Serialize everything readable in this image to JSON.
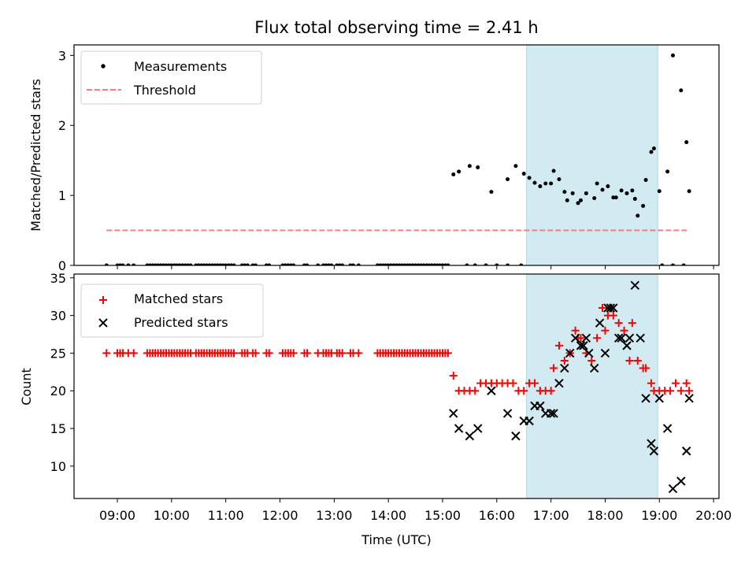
{
  "chart_data": {
    "title": "Flux total observing time = 2.41 h",
    "x_axis": {
      "label": "Time (UTC)",
      "range_hours": [
        8.2,
        20.1
      ],
      "ticks": [
        9,
        10,
        11,
        12,
        13,
        14,
        15,
        16,
        17,
        18,
        19,
        20
      ],
      "tick_labels": [
        "09:00",
        "10:00",
        "11:00",
        "12:00",
        "13:00",
        "14:00",
        "15:00",
        "16:00",
        "17:00",
        "18:00",
        "19:00",
        "20:00"
      ]
    },
    "shaded_region_hours": [
      16.55,
      18.97
    ],
    "colors": {
      "shade": "#add8e6",
      "threshold": "#f08080",
      "matched": "#ff0000",
      "predicted": "#000000",
      "measurement": "#000000"
    },
    "top": {
      "type": "scatter",
      "ylabel": "Matched/Predicted stars",
      "ylim": [
        0,
        3.15
      ],
      "yticks": [
        0,
        1,
        2,
        3
      ],
      "legend": {
        "position": "top-left",
        "entries": [
          "Measurements",
          "Threshold"
        ]
      },
      "threshold": {
        "value": 0.5,
        "x_range": [
          8.8,
          19.55
        ]
      },
      "measurements": [
        [
          8.8,
          0
        ],
        [
          9.0,
          0
        ],
        [
          9.05,
          0
        ],
        [
          9.1,
          0
        ],
        [
          9.2,
          0
        ],
        [
          9.3,
          0
        ],
        [
          9.55,
          0
        ],
        [
          9.6,
          0
        ],
        [
          9.65,
          0
        ],
        [
          9.7,
          0
        ],
        [
          9.75,
          0
        ],
        [
          9.8,
          0
        ],
        [
          9.85,
          0
        ],
        [
          9.9,
          0
        ],
        [
          9.95,
          0
        ],
        [
          10.0,
          0
        ],
        [
          10.05,
          0
        ],
        [
          10.1,
          0
        ],
        [
          10.15,
          0
        ],
        [
          10.2,
          0
        ],
        [
          10.25,
          0
        ],
        [
          10.3,
          0
        ],
        [
          10.35,
          0
        ],
        [
          10.45,
          0
        ],
        [
          10.5,
          0
        ],
        [
          10.55,
          0
        ],
        [
          10.6,
          0
        ],
        [
          10.65,
          0
        ],
        [
          10.7,
          0
        ],
        [
          10.75,
          0
        ],
        [
          10.8,
          0
        ],
        [
          10.85,
          0
        ],
        [
          10.9,
          0
        ],
        [
          10.95,
          0
        ],
        [
          11.0,
          0
        ],
        [
          11.05,
          0
        ],
        [
          11.1,
          0
        ],
        [
          11.15,
          0
        ],
        [
          11.3,
          0
        ],
        [
          11.35,
          0
        ],
        [
          11.4,
          0
        ],
        [
          11.5,
          0
        ],
        [
          11.55,
          0
        ],
        [
          11.75,
          0
        ],
        [
          11.8,
          0
        ],
        [
          12.05,
          0
        ],
        [
          12.1,
          0
        ],
        [
          12.15,
          0
        ],
        [
          12.2,
          0
        ],
        [
          12.25,
          0
        ],
        [
          12.45,
          0
        ],
        [
          12.5,
          0
        ],
        [
          12.7,
          0
        ],
        [
          12.8,
          0
        ],
        [
          12.85,
          0
        ],
        [
          12.9,
          0
        ],
        [
          12.95,
          0
        ],
        [
          13.05,
          0
        ],
        [
          13.1,
          0
        ],
        [
          13.15,
          0
        ],
        [
          13.3,
          0
        ],
        [
          13.35,
          0
        ],
        [
          13.45,
          0
        ],
        [
          13.8,
          0
        ],
        [
          13.85,
          0
        ],
        [
          13.9,
          0
        ],
        [
          13.95,
          0
        ],
        [
          14.0,
          0
        ],
        [
          14.05,
          0
        ],
        [
          14.1,
          0
        ],
        [
          14.15,
          0
        ],
        [
          14.2,
          0
        ],
        [
          14.25,
          0
        ],
        [
          14.3,
          0
        ],
        [
          14.35,
          0
        ],
        [
          14.4,
          0
        ],
        [
          14.45,
          0
        ],
        [
          14.5,
          0
        ],
        [
          14.55,
          0
        ],
        [
          14.6,
          0
        ],
        [
          14.65,
          0
        ],
        [
          14.7,
          0
        ],
        [
          14.75,
          0
        ],
        [
          14.8,
          0
        ],
        [
          14.85,
          0
        ],
        [
          14.9,
          0
        ],
        [
          14.95,
          0
        ],
        [
          15.0,
          0
        ],
        [
          15.05,
          0
        ],
        [
          15.1,
          0
        ],
        [
          15.2,
          1.3
        ],
        [
          15.3,
          1.34
        ],
        [
          15.5,
          1.42
        ],
        [
          15.65,
          1.4
        ],
        [
          15.9,
          1.05
        ],
        [
          15.45,
          0
        ],
        [
          15.6,
          0
        ],
        [
          15.8,
          0
        ],
        [
          16.0,
          0
        ],
        [
          16.2,
          0
        ],
        [
          16.45,
          0
        ],
        [
          16.2,
          1.23
        ],
        [
          16.35,
          1.42
        ],
        [
          16.5,
          1.31
        ],
        [
          16.6,
          1.25
        ],
        [
          16.7,
          1.18
        ],
        [
          16.8,
          1.13
        ],
        [
          16.9,
          1.17
        ],
        [
          17.0,
          1.17
        ],
        [
          17.05,
          1.35
        ],
        [
          17.15,
          1.23
        ],
        [
          17.25,
          1.05
        ],
        [
          17.3,
          0.93
        ],
        [
          17.4,
          1.03
        ],
        [
          17.5,
          0.89
        ],
        [
          17.55,
          0.93
        ],
        [
          17.65,
          1.03
        ],
        [
          17.8,
          0.96
        ],
        [
          17.85,
          1.17
        ],
        [
          17.95,
          1.08
        ],
        [
          18.05,
          1.13
        ],
        [
          18.15,
          0.97
        ],
        [
          18.2,
          0.97
        ],
        [
          18.3,
          1.07
        ],
        [
          18.4,
          1.03
        ],
        [
          18.5,
          1.07
        ],
        [
          18.55,
          0.95
        ],
        [
          18.6,
          0.71
        ],
        [
          18.7,
          0.85
        ],
        [
          18.75,
          1.22
        ],
        [
          18.85,
          1.62
        ],
        [
          18.9,
          1.67
        ],
        [
          19.0,
          1.06
        ],
        [
          19.05,
          0
        ],
        [
          19.15,
          1.34
        ],
        [
          19.25,
          3.0
        ],
        [
          19.25,
          0
        ],
        [
          19.4,
          2.5
        ],
        [
          19.45,
          0
        ],
        [
          19.5,
          1.76
        ],
        [
          19.55,
          1.06
        ]
      ]
    },
    "bottom": {
      "type": "scatter",
      "ylabel": "Count",
      "ylim": [
        5.7,
        35.5
      ],
      "yticks": [
        10,
        15,
        20,
        25,
        30,
        35
      ],
      "legend": {
        "position": "top-left",
        "entries": [
          "Matched stars",
          "Predicted stars"
        ]
      },
      "matched_constant": {
        "value": 25,
        "times": [
          8.8,
          9.0,
          9.05,
          9.1,
          9.2,
          9.3,
          9.55,
          9.6,
          9.65,
          9.7,
          9.75,
          9.8,
          9.85,
          9.9,
          9.95,
          10.0,
          10.05,
          10.1,
          10.15,
          10.2,
          10.25,
          10.3,
          10.35,
          10.45,
          10.5,
          10.55,
          10.6,
          10.65,
          10.7,
          10.75,
          10.8,
          10.85,
          10.9,
          10.95,
          11.0,
          11.05,
          11.1,
          11.15,
          11.3,
          11.35,
          11.4,
          11.5,
          11.55,
          11.75,
          11.8,
          12.05,
          12.1,
          12.15,
          12.2,
          12.25,
          12.45,
          12.5,
          12.7,
          12.8,
          12.85,
          12.9,
          12.95,
          13.05,
          13.1,
          13.15,
          13.3,
          13.35,
          13.45,
          13.8,
          13.85,
          13.9,
          13.95,
          14.0,
          14.05,
          14.1,
          14.15,
          14.2,
          14.25,
          14.3,
          14.35,
          14.4,
          14.45,
          14.5,
          14.55,
          14.6,
          14.65,
          14.7,
          14.75,
          14.8,
          14.85,
          14.9,
          14.95,
          15.0,
          15.05,
          15.1
        ]
      },
      "matched": [
        [
          15.2,
          22
        ],
        [
          15.3,
          20
        ],
        [
          15.4,
          20
        ],
        [
          15.5,
          20
        ],
        [
          15.6,
          20
        ],
        [
          15.7,
          21
        ],
        [
          15.8,
          21
        ],
        [
          15.9,
          21
        ],
        [
          16.0,
          21
        ],
        [
          16.1,
          21
        ],
        [
          16.2,
          21
        ],
        [
          16.3,
          21
        ],
        [
          16.4,
          20
        ],
        [
          16.5,
          20
        ],
        [
          16.6,
          21
        ],
        [
          16.7,
          21
        ],
        [
          16.8,
          20
        ],
        [
          16.9,
          20
        ],
        [
          17.0,
          20
        ],
        [
          17.05,
          23
        ],
        [
          17.15,
          26
        ],
        [
          17.25,
          24
        ],
        [
          17.35,
          25
        ],
        [
          17.45,
          28
        ],
        [
          17.5,
          27
        ],
        [
          17.55,
          27
        ],
        [
          17.65,
          25
        ],
        [
          17.75,
          24
        ],
        [
          17.85,
          27
        ],
        [
          17.95,
          31
        ],
        [
          18.0,
          28
        ],
        [
          18.05,
          30
        ],
        [
          18.1,
          31
        ],
        [
          18.15,
          30
        ],
        [
          18.25,
          29
        ],
        [
          18.35,
          28
        ],
        [
          18.45,
          24
        ],
        [
          18.5,
          29
        ],
        [
          18.6,
          24
        ],
        [
          18.7,
          23
        ],
        [
          18.75,
          23
        ],
        [
          18.85,
          21
        ],
        [
          18.9,
          20
        ],
        [
          19.0,
          20
        ],
        [
          19.1,
          20
        ],
        [
          19.2,
          20
        ],
        [
          19.3,
          21
        ],
        [
          19.4,
          20
        ],
        [
          19.5,
          21
        ],
        [
          19.55,
          20
        ]
      ],
      "predicted": [
        [
          15.2,
          17
        ],
        [
          15.3,
          15
        ],
        [
          15.5,
          14
        ],
        [
          15.65,
          15
        ],
        [
          15.9,
          20
        ],
        [
          16.2,
          17
        ],
        [
          16.35,
          14
        ],
        [
          16.5,
          16
        ],
        [
          16.6,
          16
        ],
        [
          16.7,
          18
        ],
        [
          16.8,
          18
        ],
        [
          16.9,
          17
        ],
        [
          17.0,
          17
        ],
        [
          17.05,
          17
        ],
        [
          17.15,
          21
        ],
        [
          17.25,
          23
        ],
        [
          17.35,
          25
        ],
        [
          17.45,
          27
        ],
        [
          17.55,
          26
        ],
        [
          17.6,
          26
        ],
        [
          17.65,
          27
        ],
        [
          17.7,
          25
        ],
        [
          17.8,
          23
        ],
        [
          17.9,
          29
        ],
        [
          18.0,
          25
        ],
        [
          18.05,
          31
        ],
        [
          18.1,
          31
        ],
        [
          18.15,
          31
        ],
        [
          18.25,
          27
        ],
        [
          18.3,
          27
        ],
        [
          18.4,
          26
        ],
        [
          18.45,
          27
        ],
        [
          18.55,
          34
        ],
        [
          18.65,
          27
        ],
        [
          18.75,
          19
        ],
        [
          18.85,
          13
        ],
        [
          18.9,
          12
        ],
        [
          19.0,
          19
        ],
        [
          19.15,
          15
        ],
        [
          19.25,
          7
        ],
        [
          19.4,
          8
        ],
        [
          19.5,
          12
        ],
        [
          19.55,
          19
        ]
      ]
    }
  }
}
